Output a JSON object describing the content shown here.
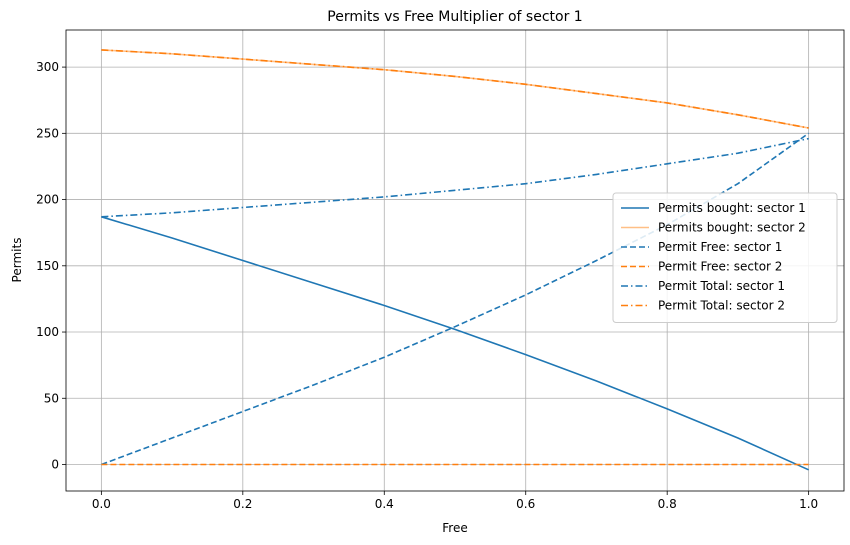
{
  "chart_data": {
    "type": "line",
    "title": "Permits  vs Free Multiplier of sector 1",
    "xlabel": "Free",
    "ylabel": "Permits",
    "xlim": [
      -0.05,
      1.05
    ],
    "ylim": [
      -20,
      328
    ],
    "xticks": [
      0.0,
      0.2,
      0.4,
      0.6,
      0.8,
      1.0
    ],
    "xtick_labels": [
      "0.0",
      "0.2",
      "0.4",
      "0.6",
      "0.8",
      "1.0"
    ],
    "yticks": [
      0,
      50,
      100,
      150,
      200,
      250,
      300
    ],
    "ytick_labels": [
      "0",
      "50",
      "100",
      "150",
      "200",
      "250",
      "300"
    ],
    "grid": true,
    "legend_position": "center-right",
    "x": [
      0.0,
      0.1,
      0.2,
      0.3,
      0.4,
      0.5,
      0.6,
      0.7,
      0.8,
      0.9,
      1.0
    ],
    "series": [
      {
        "name": "Permits bought: sector 1",
        "color": "#1f77b4",
        "dash": "solid",
        "opacity": 1,
        "values": [
          187,
          171,
          154,
          137,
          120,
          102,
          83,
          63,
          42,
          20,
          -4
        ]
      },
      {
        "name": "Permits bought: sector 2",
        "color": "#ff7f0e",
        "dash": "solid",
        "opacity": 0.5,
        "values": [
          313,
          310,
          306,
          302,
          298,
          293,
          287,
          280,
          273,
          264,
          254
        ]
      },
      {
        "name": "Permit Free: sector 1",
        "color": "#1f77b4",
        "dash": "dashed",
        "opacity": 1,
        "values": [
          0,
          20,
          40,
          60,
          81,
          104,
          128,
          154,
          181,
          212,
          250
        ]
      },
      {
        "name": "Permit Free: sector 2",
        "color": "#ff7f0e",
        "dash": "dashed",
        "opacity": 1,
        "values": [
          0,
          0,
          0,
          0,
          0,
          0,
          0,
          0,
          0,
          0,
          0
        ]
      },
      {
        "name": "Permit Total: sector 1",
        "color": "#1f77b4",
        "dash": "dashdot",
        "opacity": 1,
        "values": [
          187,
          190,
          194,
          198,
          202,
          207,
          212,
          219,
          227,
          235,
          246
        ]
      },
      {
        "name": "Permit Total: sector 2",
        "color": "#ff7f0e",
        "dash": "dashdot",
        "opacity": 1,
        "values": [
          313,
          310,
          306,
          302,
          298,
          293,
          287,
          280,
          273,
          264,
          254
        ]
      }
    ]
  }
}
